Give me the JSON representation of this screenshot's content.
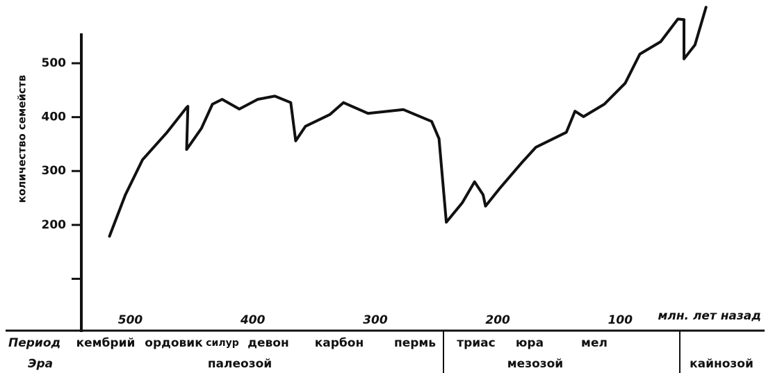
{
  "chart_data": {
    "type": "line",
    "x_label": "млн. лет назад",
    "y_label": "количество семейств",
    "x": [
      517,
      504,
      490,
      470,
      454,
      453,
      454,
      442,
      433,
      425,
      411,
      396,
      382,
      369,
      365,
      357,
      337,
      326,
      306,
      277,
      254,
      248,
      242,
      229,
      219,
      212,
      210,
      198,
      181,
      169,
      144,
      137,
      130,
      113,
      96,
      84,
      67,
      53,
      48,
      48,
      39,
      30
    ],
    "series": [
      {
        "color": "#111111",
        "values": [
          179,
          256,
          321,
          372,
          418,
          420,
          340,
          379,
          424,
          433,
          415,
          433,
          439,
          427,
          356,
          383,
          405,
          427,
          407,
          414,
          392,
          360,
          205,
          241,
          280,
          256,
          235,
          269,
          314,
          344,
          372,
          411,
          401,
          424,
          463,
          517,
          540,
          582,
          581,
          508,
          534,
          604
        ]
      }
    ],
    "xlim": [
      540,
      -15
    ],
    "xticks": [
      500,
      400,
      300,
      200,
      100
    ],
    "ylim": [
      0,
      610
    ],
    "yticks": [
      {
        "value": 100,
        "label": null
      },
      200,
      300,
      400,
      500
    ],
    "row_labels": {
      "period": "Период",
      "era": "Эра"
    },
    "periods": [
      "кембрий",
      "ордовик",
      "силур",
      "девон",
      "карбон",
      "пермь",
      "триас",
      "юра",
      "мел"
    ],
    "eras": [
      "палеозой",
      "мезозой",
      "кайнозой"
    ]
  }
}
